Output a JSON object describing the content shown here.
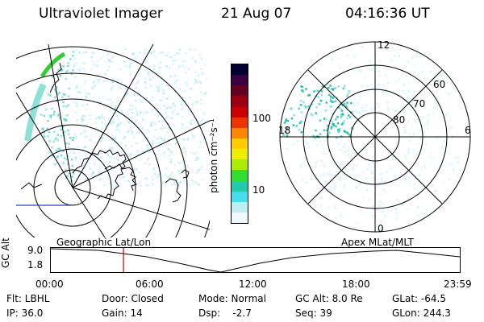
{
  "header": {
    "title": "Ultraviolet Imager",
    "date": "21 Aug 07",
    "time": "04:16:36 UT"
  },
  "colorbar": {
    "unit_label": "photon cm⁻²s⁻¹",
    "tick_labels": [
      "100",
      "10"
    ],
    "colors": [
      "#000030",
      "#3a0040",
      "#660022",
      "#9a0010",
      "#cc0000",
      "#ee3300",
      "#ff8800",
      "#ffcc00",
      "#eeee00",
      "#aaee00",
      "#33dd33",
      "#22ccaa",
      "#44ddee",
      "#bfeef2",
      "#eef8fa"
    ]
  },
  "polar_plot": {
    "mlt_labels": {
      "top": "12",
      "left": "18",
      "right": "6",
      "bottom": "0"
    },
    "lat_labels": [
      "60",
      "70",
      "80"
    ]
  },
  "timeline": {
    "y_axis_label": "GC Alt",
    "y_ticks": [
      "9.0",
      "1.8"
    ],
    "left_label": "Geographic Lat/Lon",
    "right_label": "Apex MLat/MLT",
    "x_ticks": [
      "00:00",
      "06:00",
      "12:00",
      "18:00",
      "23:59"
    ],
    "marker_time": "04:16",
    "marker_color": "#cc0000"
  },
  "footer": {
    "row1": [
      {
        "name": "flt",
        "text": "Flt: LBHL"
      },
      {
        "name": "door",
        "text": "Door: Closed"
      },
      {
        "name": "mode",
        "text": "Mode: Normal"
      },
      {
        "name": "gcalt",
        "text": "GC Alt: 8.0 Re"
      },
      {
        "name": "glat",
        "text": "GLat: -64.5"
      }
    ],
    "row2": [
      {
        "name": "ip",
        "text": "IP: 36.0"
      },
      {
        "name": "gain",
        "text": "Gain: 14"
      },
      {
        "name": "dsp",
        "text": "Dsp:    -2.7"
      },
      {
        "name": "seq",
        "text": "Seq: 39"
      },
      {
        "name": "glon",
        "text": "GLon: 244.3"
      }
    ]
  }
}
